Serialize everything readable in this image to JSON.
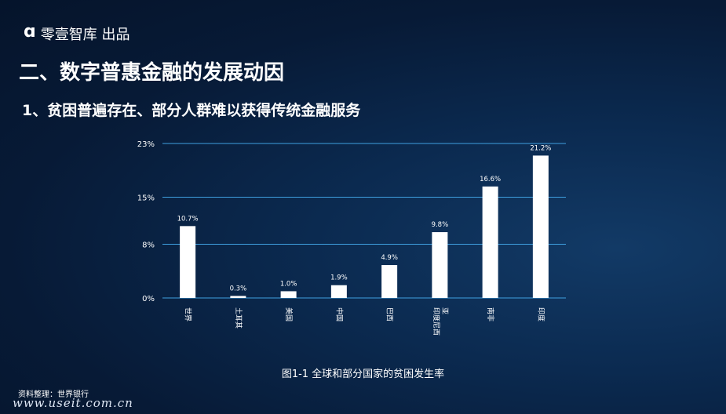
{
  "brand": {
    "logo": "ɑ",
    "name": "零壹智库 出品"
  },
  "title": "二、数字普惠金融的发展动因",
  "subtitle": "1、贫困普遍存在、部分人群难以获得传统金融服务",
  "caption": "图1-1   全球和部分国家的贫困发生率",
  "source": "资料整理：世界银行",
  "watermark": "www.useit.com.cn",
  "chart_data": {
    "type": "bar",
    "categories": [
      "世界",
      "土耳其",
      "美国",
      "中国",
      "巴西",
      "印度尼西亚",
      "南非",
      "印度"
    ],
    "values": [
      10.7,
      0.3,
      1.0,
      1.9,
      4.9,
      9.8,
      16.6,
      21.2
    ],
    "value_labels": [
      "10.7%",
      "0.3%",
      "1.0%",
      "1.9%",
      "4.9%",
      "9.8%",
      "16.6%",
      "21.2%"
    ],
    "yticks": [
      0,
      8,
      15,
      23
    ],
    "ytick_labels": [
      "0%",
      "8%",
      "15%",
      "23%"
    ],
    "ylim": [
      0,
      23
    ],
    "grid": true,
    "colors": {
      "bar": "#ffffff",
      "grid": "#3fa0e0"
    }
  }
}
